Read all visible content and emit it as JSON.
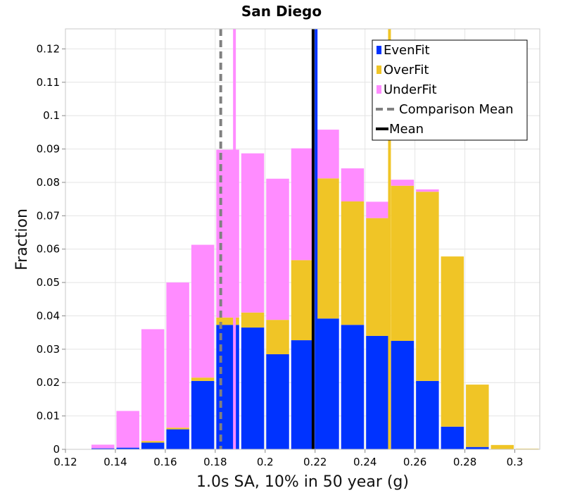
{
  "chart_data": {
    "type": "bar",
    "stacked": true,
    "title": "San Diego",
    "xlabel": "1.0s SA, 10% in 50 year (g)",
    "ylabel": "Fraction",
    "xlim": [
      0.12,
      0.31
    ],
    "ylim": [
      0,
      0.126
    ],
    "grid": true,
    "legend_position": "top-right",
    "bin_width": 0.01,
    "bin_starts": [
      0.12,
      0.13,
      0.14,
      0.15,
      0.16,
      0.17,
      0.18,
      0.19,
      0.2,
      0.21,
      0.22,
      0.23,
      0.24,
      0.25,
      0.26,
      0.27,
      0.28,
      0.29,
      0.3
    ],
    "series": [
      {
        "name": "EvenFit",
        "color": "#0033ff",
        "values": [
          0.0,
          0.0003,
          0.0005,
          0.002,
          0.006,
          0.0205,
          0.0373,
          0.0365,
          0.0285,
          0.0327,
          0.0392,
          0.0373,
          0.034,
          0.0325,
          0.0205,
          0.0068,
          0.0007,
          0.0,
          0.0
        ]
      },
      {
        "name": "OverFit",
        "color": "#f0c526",
        "values": [
          0.0,
          0.0,
          0.0,
          0.0005,
          0.0005,
          0.001,
          0.0022,
          0.0045,
          0.0103,
          0.024,
          0.042,
          0.037,
          0.0353,
          0.0465,
          0.0567,
          0.051,
          0.0187,
          0.0013,
          0.0002
        ]
      },
      {
        "name": "UnderFit",
        "color": "#ff8cff",
        "values": [
          0.0,
          0.0011,
          0.011,
          0.0335,
          0.0435,
          0.0398,
          0.0503,
          0.0477,
          0.0423,
          0.0335,
          0.0146,
          0.0099,
          0.0049,
          0.0018,
          0.0007,
          0.0,
          0.0,
          0.0,
          0.0
        ]
      }
    ],
    "reference_lines": [
      {
        "name": "EvenFit",
        "x": 0.2204,
        "color": "#0033ff",
        "style": "solid"
      },
      {
        "name": "OverFit",
        "x": 0.2498,
        "color": "#f0c526",
        "style": "solid"
      },
      {
        "name": "UnderFit",
        "x": 0.1877,
        "color": "#ff8cff",
        "style": "solid"
      },
      {
        "name": "Comparison Mean",
        "x": 0.1822,
        "color": "#808080",
        "style": "dashed"
      },
      {
        "name": "Mean",
        "x": 0.2192,
        "color": "#000000",
        "style": "solid"
      }
    ],
    "x_ticks": [
      "0.12",
      "0.14",
      "0.16",
      "0.18",
      "0.2",
      "0.22",
      "0.24",
      "0.26",
      "0.28",
      "0.3"
    ],
    "y_ticks": [
      "0",
      "0.01",
      "0.02",
      "0.03",
      "0.04",
      "0.05",
      "0.06",
      "0.07",
      "0.08",
      "0.09",
      "0.1",
      "0.11",
      "0.12"
    ],
    "legend": [
      {
        "label": "EvenFit",
        "kind": "box",
        "color": "#0033ff"
      },
      {
        "label": "OverFit",
        "kind": "box",
        "color": "#f0c526"
      },
      {
        "label": "UnderFit",
        "kind": "box",
        "color": "#ff8cff"
      },
      {
        "label": "Comparison Mean",
        "kind": "dashed",
        "color": "#808080"
      },
      {
        "label": "Mean",
        "kind": "line",
        "color": "#000000"
      }
    ]
  }
}
